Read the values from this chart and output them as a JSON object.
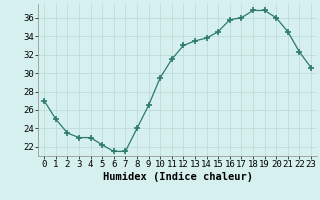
{
  "x": [
    0,
    1,
    2,
    3,
    4,
    5,
    6,
    7,
    8,
    9,
    10,
    11,
    12,
    13,
    14,
    15,
    16,
    17,
    18,
    19,
    20,
    21,
    22,
    23
  ],
  "y": [
    27.0,
    25.0,
    23.5,
    23.0,
    23.0,
    22.2,
    21.5,
    21.5,
    24.0,
    26.5,
    29.5,
    31.5,
    33.0,
    33.5,
    33.8,
    34.5,
    35.8,
    36.0,
    36.8,
    36.8,
    36.0,
    34.5,
    32.3,
    30.6
  ],
  "xlabel": "Humidex (Indice chaleur)",
  "ylim": [
    21.0,
    37.5
  ],
  "yticks": [
    22,
    24,
    26,
    28,
    30,
    32,
    34,
    36
  ],
  "xticks": [
    0,
    1,
    2,
    3,
    4,
    5,
    6,
    7,
    8,
    9,
    10,
    11,
    12,
    13,
    14,
    15,
    16,
    17,
    18,
    19,
    20,
    21,
    22,
    23
  ],
  "line_color": "#2d7a6a",
  "marker_color": "#2d7a6a",
  "bg_color": "#d5f0ee",
  "grid_color": "#c0dcd8",
  "axis_label_fontsize": 7.5,
  "tick_fontsize": 6.5
}
